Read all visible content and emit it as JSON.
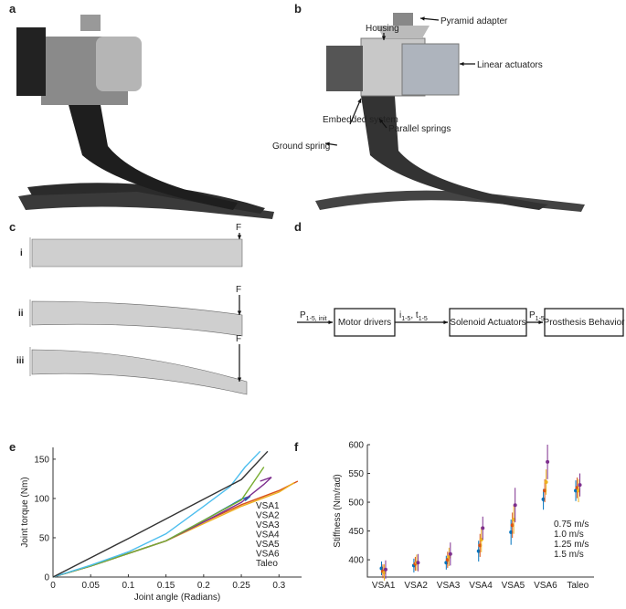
{
  "panel_labels": [
    "a",
    "b",
    "c",
    "d",
    "e",
    "f"
  ],
  "panel_b": {
    "labels": [
      "Pyramid adapter",
      "Housing",
      "Linear actuators",
      "Embedded system",
      "Parallel springs",
      "Ground spring"
    ]
  },
  "panel_c": {
    "rows": [
      "i",
      "ii",
      "iii"
    ],
    "force": "F"
  },
  "panel_d": {
    "input": [
      {
        "text": "P"
      },
      {
        "sub": "1-5, init"
      }
    ],
    "blocks": [
      "Motor drivers",
      "Solenoid Actuators",
      "Prosthesis Behavior"
    ],
    "signals": [
      [
        {
          "text": "i"
        },
        {
          "sub": "1-5"
        },
        {
          "text": ", t"
        },
        {
          "sub": "1-5"
        }
      ],
      [
        {
          "text": "P"
        },
        {
          "sub": "1-5"
        }
      ]
    ]
  },
  "chart_data": [
    {
      "type": "line",
      "xlabel": "Joint angle (Radians)",
      "ylabel": "Joint torque (Nm)",
      "xlim": [
        0,
        0.33
      ],
      "ylim": [
        0,
        165
      ],
      "xticks": [
        0,
        0.05,
        0.1,
        0.15,
        0.2,
        0.25,
        0.3
      ],
      "yticks": [
        0,
        50,
        100,
        150
      ],
      "legend": "lower right",
      "series": [
        {
          "name": "VSA1",
          "color": "#0072bd",
          "x": [
            0,
            0.05,
            0.1,
            0.15,
            0.2,
            0.25,
            0.262,
            0.255
          ],
          "values": [
            0,
            14,
            30,
            46,
            72,
            99,
            103,
            97
          ]
        },
        {
          "name": "VSA2",
          "color": "#d95319",
          "x": [
            0,
            0.05,
            0.1,
            0.15,
            0.2,
            0.25,
            0.3,
            0.325
          ],
          "values": [
            0,
            14,
            30,
            46,
            70,
            92,
            110,
            122
          ]
        },
        {
          "name": "VSA3",
          "color": "#edb120",
          "x": [
            0,
            0.05,
            0.1,
            0.15,
            0.2,
            0.25,
            0.3,
            0.32
          ],
          "values": [
            0,
            14,
            30,
            46,
            68,
            90,
            108,
            120
          ]
        },
        {
          "name": "VSA4",
          "color": "#7e2f8e",
          "x": [
            0,
            0.05,
            0.1,
            0.15,
            0.2,
            0.25,
            0.28,
            0.29,
            0.275
          ],
          "values": [
            0,
            14,
            30,
            46,
            70,
            95,
            118,
            127,
            122
          ]
        },
        {
          "name": "VSA5",
          "color": "#77ac30",
          "x": [
            0,
            0.05,
            0.1,
            0.15,
            0.2,
            0.25,
            0.28
          ],
          "values": [
            0,
            14,
            30,
            46,
            72,
            98,
            140
          ]
        },
        {
          "name": "VSA6",
          "color": "#4dbeee",
          "x": [
            0,
            0.05,
            0.1,
            0.15,
            0.2,
            0.235,
            0.255,
            0.275
          ],
          "values": [
            0,
            15,
            32,
            55,
            90,
            115,
            140,
            160
          ]
        },
        {
          "name": "Taleo",
          "color": "#333333",
          "x": [
            0,
            0.1,
            0.2,
            0.25,
            0.285
          ],
          "values": [
            0,
            49,
            99,
            124,
            160
          ]
        }
      ]
    },
    {
      "type": "errorbar",
      "ylabel": "Stiffness (Nm/rad)",
      "categories": [
        "VSA1",
        "VSA2",
        "VSA3",
        "VSA4",
        "VSA5",
        "VSA6",
        "Taleo"
      ],
      "ylim": [
        370,
        600
      ],
      "yticks": [
        400,
        450,
        500,
        550,
        600
      ],
      "legend": "lower right",
      "series": [
        {
          "name": "0.75 m/s",
          "color": "#0072bd",
          "values": [
            385,
            390,
            395,
            415,
            448,
            505,
            520
          ],
          "errors": [
            12,
            12,
            12,
            18,
            22,
            18,
            18
          ]
        },
        {
          "name": "1.0 m/s",
          "color": "#d95319",
          "values": [
            380,
            393,
            400,
            425,
            460,
            520,
            525
          ],
          "errors": [
            12,
            12,
            14,
            20,
            22,
            20,
            18
          ]
        },
        {
          "name": "1.25 m/s",
          "color": "#edb120",
          "values": [
            378,
            395,
            405,
            435,
            470,
            535,
            520
          ],
          "errors": [
            14,
            14,
            16,
            22,
            25,
            22,
            20
          ]
        },
        {
          "name": "1.5 m/s",
          "color": "#7e2f8e",
          "values": [
            383,
            395,
            410,
            455,
            495,
            570,
            530
          ],
          "errors": [
            16,
            15,
            20,
            20,
            30,
            30,
            20
          ]
        }
      ]
    }
  ]
}
